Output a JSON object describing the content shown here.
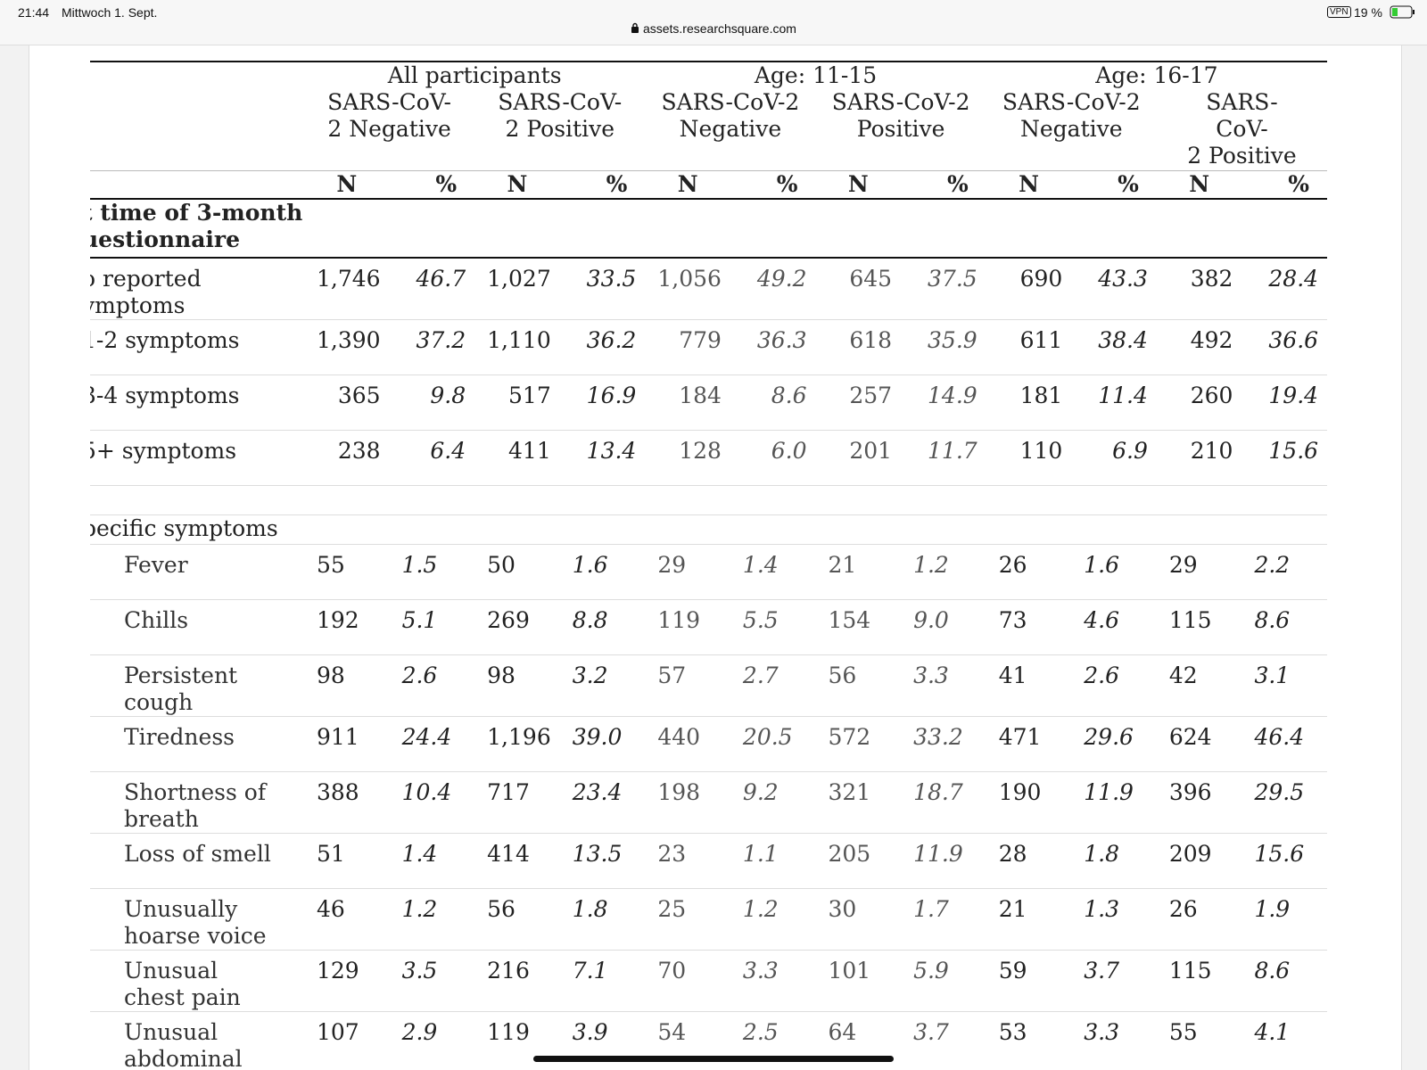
{
  "status_bar": {
    "time": "21:44",
    "date": "Mittwoch 1. Sept.",
    "url": "assets.researchsquare.com",
    "vpn": "VPN",
    "battery": "19 %"
  },
  "table": {
    "groups": [
      "All participants",
      "Age: 11-15",
      "Age: 16-17"
    ],
    "subgroups": [
      "SARS-CoV-\n2 Negative",
      "SARS-CoV-\n2 Positive",
      "SARS-CoV-2\nNegative",
      "SARS-CoV-2\nPositive",
      "SARS-CoV-2\nNegative",
      "SARS-\nCoV-\n2 Positive"
    ],
    "units": [
      "N",
      "%",
      "N",
      "%",
      "N",
      "%",
      "N",
      "%",
      "N",
      "%",
      "N",
      "%"
    ],
    "blocks": [
      {
        "heading": "t time of 3-month\nuestionnaire",
        "rows": [
          {
            "label": "o reported\nymptoms",
            "cells": [
              "1,746",
              "46.7",
              "1,027",
              "33.5",
              "1,056",
              "49.2",
              "645",
              "37.5",
              "690",
              "43.3",
              "382",
              "28.4"
            ]
          },
          {
            "label": "1-2 symptoms",
            "cells": [
              "1,390",
              "37.2",
              "1,110",
              "36.2",
              "779",
              "36.3",
              "618",
              "35.9",
              "611",
              "38.4",
              "492",
              "36.6"
            ]
          },
          {
            "label": "3-4 symptoms",
            "cells": [
              "365",
              "9.8",
              "517",
              "16.9",
              "184",
              "8.6",
              "257",
              "14.9",
              "181",
              "11.4",
              "260",
              "19.4"
            ]
          },
          {
            "label": "5+ symptoms",
            "cells": [
              "238",
              "6.4",
              "411",
              "13.4",
              "128",
              "6.0",
              "201",
              "11.7",
              "110",
              "6.9",
              "210",
              "15.6"
            ]
          }
        ]
      },
      {
        "heading": "pecific symptoms",
        "rows": [
          {
            "label": "Fever",
            "cells": [
              "55",
              "1.5",
              "50",
              "1.6",
              "29",
              "1.4",
              "21",
              "1.2",
              "26",
              "1.6",
              "29",
              "2.2"
            ]
          },
          {
            "label": "Chills",
            "cells": [
              "192",
              "5.1",
              "269",
              "8.8",
              "119",
              "5.5",
              "154",
              "9.0",
              "73",
              "4.6",
              "115",
              "8.6"
            ]
          },
          {
            "label": "Persistent\ncough",
            "cells": [
              "98",
              "2.6",
              "98",
              "3.2",
              "57",
              "2.7",
              "56",
              "3.3",
              "41",
              "2.6",
              "42",
              "3.1"
            ]
          },
          {
            "label": "Tiredness",
            "cells": [
              "911",
              "24.4",
              "1,196",
              "39.0",
              "440",
              "20.5",
              "572",
              "33.2",
              "471",
              "29.6",
              "624",
              "46.4"
            ]
          },
          {
            "label": "Shortness of\nbreath",
            "cells": [
              "388",
              "10.4",
              "717",
              "23.4",
              "198",
              "9.2",
              "321",
              "18.7",
              "190",
              "11.9",
              "396",
              "29.5"
            ]
          },
          {
            "label": "Loss of smell",
            "cells": [
              "51",
              "1.4",
              "414",
              "13.5",
              "23",
              "1.1",
              "205",
              "11.9",
              "28",
              "1.8",
              "209",
              "15.6"
            ]
          },
          {
            "label": "Unusually\nhoarse voice",
            "cells": [
              "46",
              "1.2",
              "56",
              "1.8",
              "25",
              "1.2",
              "30",
              "1.7",
              "21",
              "1.3",
              "26",
              "1.9"
            ]
          },
          {
            "label": "Unusual\nchest pain",
            "cells": [
              "129",
              "3.5",
              "216",
              "7.1",
              "70",
              "3.3",
              "101",
              "5.9",
              "59",
              "3.7",
              "115",
              "8.6"
            ]
          },
          {
            "label": "Unusual\nabdominal\npain",
            "cells": [
              "107",
              "2.9",
              "119",
              "3.9",
              "54",
              "2.5",
              "64",
              "3.7",
              "53",
              "3.3",
              "55",
              "4.1"
            ]
          }
        ]
      }
    ]
  }
}
